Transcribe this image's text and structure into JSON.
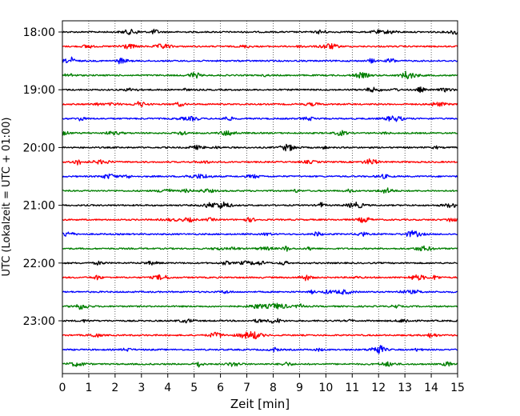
{
  "chart_data": {
    "type": "line",
    "title": "",
    "xlabel": "Zeit  [min]",
    "ylabel": "UTC (Lokalzeit = UTC + 01:00)",
    "xlim": [
      0,
      15
    ],
    "x_ticks": [
      "0",
      "1",
      "2",
      "3",
      "4",
      "5",
      "6",
      "7",
      "8",
      "9",
      "10",
      "11",
      "12",
      "13",
      "14",
      "15"
    ],
    "y_ticks": [
      "18:00",
      "19:00",
      "20:00",
      "21:00",
      "22:00",
      "23:00"
    ],
    "grid": "vertical dotted",
    "trace_interval_minutes": 15,
    "color_cycle": [
      "#000000",
      "#ff0000",
      "#0000ff",
      "#007f00"
    ],
    "traces": [
      {
        "start": "18:00"
      },
      {
        "start": "18:15"
      },
      {
        "start": "18:30"
      },
      {
        "start": "18:45"
      },
      {
        "start": "19:00"
      },
      {
        "start": "19:15"
      },
      {
        "start": "19:30"
      },
      {
        "start": "19:45"
      },
      {
        "start": "20:00"
      },
      {
        "start": "20:15"
      },
      {
        "start": "20:30"
      },
      {
        "start": "20:45"
      },
      {
        "start": "21:00"
      },
      {
        "start": "21:15"
      },
      {
        "start": "21:30"
      },
      {
        "start": "21:45"
      },
      {
        "start": "22:00"
      },
      {
        "start": "22:15"
      },
      {
        "start": "22:30"
      },
      {
        "start": "22:45"
      },
      {
        "start": "23:00"
      },
      {
        "start": "23:15"
      },
      {
        "start": "23:30"
      },
      {
        "start": "23:45"
      }
    ]
  }
}
